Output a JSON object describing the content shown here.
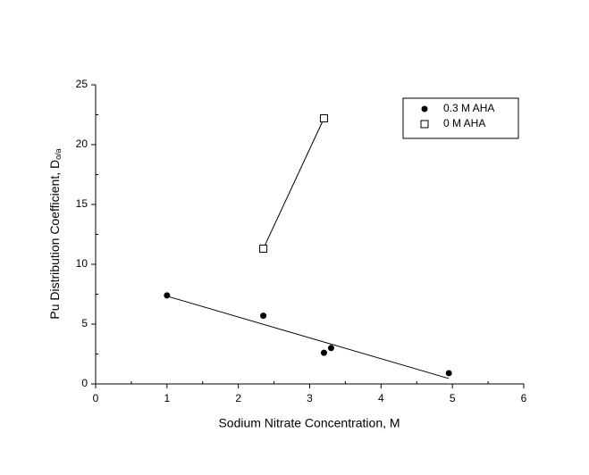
{
  "chart_data": {
    "type": "scatter",
    "xlabel": "Sodium Nitrate Concentration, M",
    "ylabel": "Pu Distribution Coefficient, D",
    "ylabel_subscript": "o/a",
    "xlim": [
      0,
      6
    ],
    "xticks": [
      0,
      1,
      2,
      3,
      4,
      5,
      6
    ],
    "ylim": [
      0,
      25
    ],
    "yticks": [
      0,
      5,
      10,
      15,
      20,
      25
    ],
    "minor_ticks": true,
    "legend": "upper right",
    "series": [
      {
        "name": "0.3 M AHA",
        "color": "#000000",
        "marker": "filled-circle",
        "trendline": "linear",
        "x": [
          1.0,
          2.35,
          3.2,
          3.3,
          4.95
        ],
        "values": [
          7.4,
          5.7,
          2.6,
          3.0,
          0.9
        ]
      },
      {
        "name": "0 M AHA",
        "color": "#000000",
        "marker": "open-square",
        "trendline": "linear",
        "x": [
          2.35,
          3.2
        ],
        "values": [
          11.3,
          22.2
        ]
      }
    ]
  }
}
